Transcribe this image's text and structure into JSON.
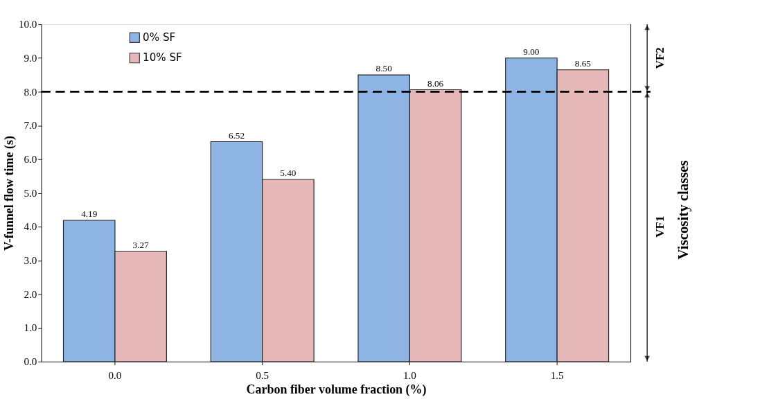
{
  "chart_data": {
    "type": "bar",
    "xlabel": "Carbon fiber volume fraction (%)",
    "ylabel": "V-funnel flow time (s)",
    "y2label": "Viscosity classes",
    "categories": [
      "0.0",
      "0.5",
      "1.0",
      "1.5"
    ],
    "series": [
      {
        "name": "0% SF",
        "color": "#8eb4e3",
        "values": [
          4.19,
          6.52,
          8.5,
          9.0
        ],
        "value_labels": [
          "4.19",
          "6.52",
          "8.50",
          "9.00"
        ]
      },
      {
        "name": "10% SF",
        "color": "#e6b9b8",
        "values": [
          3.27,
          5.4,
          8.06,
          8.65
        ],
        "value_labels": [
          "3.27",
          "5.40",
          "8.06",
          "8.65"
        ]
      }
    ],
    "ylim": [
      0,
      10
    ],
    "yticks": [
      {
        "value": 0,
        "label": "0.0"
      },
      {
        "value": 1,
        "label": "1.0"
      },
      {
        "value": 2,
        "label": "2.0"
      },
      {
        "value": 3,
        "label": "3.0"
      },
      {
        "value": 4,
        "label": "4.0"
      },
      {
        "value": 5,
        "label": "5.0"
      },
      {
        "value": 6,
        "label": "6.0"
      },
      {
        "value": 7,
        "label": "7.0"
      },
      {
        "value": 8,
        "label": "8.0"
      },
      {
        "value": 9,
        "label": "9.0"
      },
      {
        "value": 10,
        "label": "10.0"
      }
    ],
    "ref_lines": [
      {
        "axis": "y",
        "value": 8,
        "line_style": "dashed",
        "color": "#000000"
      }
    ],
    "annotations": [
      "VF2",
      "VF1"
    ],
    "legend": "top left",
    "grid": false
  }
}
